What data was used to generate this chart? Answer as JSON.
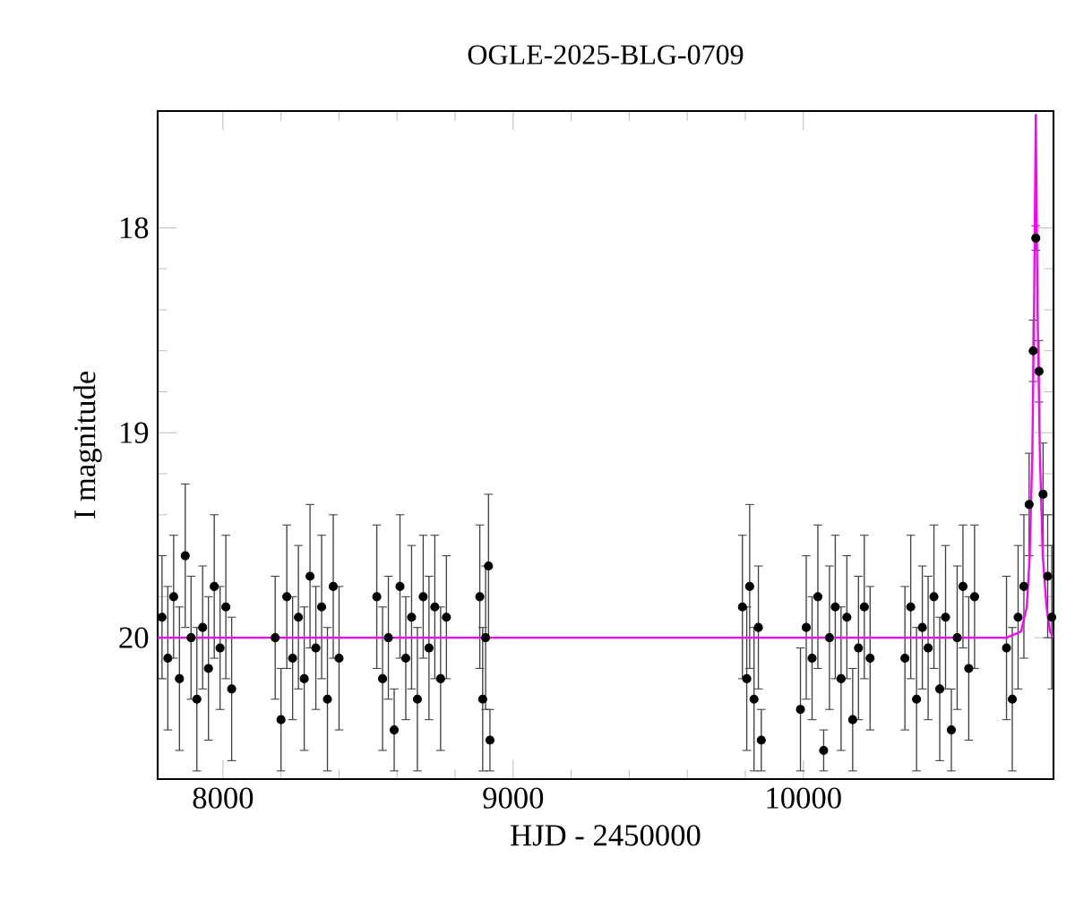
{
  "chart_data": {
    "type": "scatter",
    "title": "OGLE-2025-BLG-0709",
    "xlabel": "HJD - 2450000",
    "ylabel": "I magnitude",
    "xlim": [
      7775,
      10862
    ],
    "ylim": [
      20.69,
      17.43
    ],
    "xticks": [
      8000,
      9000,
      10000
    ],
    "yticks": [
      18,
      19,
      20
    ],
    "grid": false,
    "series": [
      {
        "marker": "circle",
        "color": "#000000",
        "x": [
          7790,
          7810,
          7830,
          7850,
          7870,
          7890,
          7910,
          7930,
          7950,
          7970,
          7990,
          8010,
          8030,
          8180,
          8200,
          8220,
          8240,
          8260,
          8280,
          8300,
          8320,
          8340,
          8360,
          8380,
          8400,
          8530,
          8550,
          8570,
          8590,
          8610,
          8630,
          8650,
          8670,
          8690,
          8710,
          8730,
          8750,
          8770,
          8885,
          8895,
          8905,
          8915,
          8920,
          9790,
          9805,
          9815,
          9830,
          9845,
          9855,
          9990,
          10010,
          10030,
          10050,
          10070,
          10090,
          10110,
          10130,
          10150,
          10170,
          10190,
          10210,
          10230,
          10350,
          10370,
          10390,
          10410,
          10430,
          10450,
          10470,
          10490,
          10510,
          10530,
          10550,
          10570,
          10590,
          10700,
          10720,
          10740,
          10760,
          10778,
          10792,
          10801,
          10812,
          10826,
          10842,
          10856
        ],
        "values": [
          19.9,
          20.1,
          19.8,
          20.2,
          19.6,
          20.0,
          20.3,
          19.95,
          20.15,
          19.75,
          20.05,
          19.85,
          20.25,
          20.0,
          20.4,
          19.8,
          20.1,
          19.9,
          20.2,
          19.7,
          20.05,
          19.85,
          20.3,
          19.75,
          20.1,
          19.8,
          20.2,
          20.0,
          20.45,
          19.75,
          20.1,
          19.9,
          20.3,
          19.8,
          20.05,
          19.85,
          20.2,
          19.9,
          19.8,
          20.3,
          20.0,
          19.65,
          20.5,
          19.85,
          20.2,
          19.75,
          20.3,
          19.95,
          20.5,
          20.35,
          19.95,
          20.1,
          19.8,
          20.55,
          20.0,
          19.85,
          20.2,
          19.9,
          20.4,
          20.05,
          19.85,
          20.1,
          20.1,
          19.85,
          20.3,
          19.95,
          20.05,
          19.8,
          20.25,
          19.9,
          20.45,
          20.0,
          19.75,
          20.15,
          19.8,
          20.05,
          20.3,
          19.9,
          19.75,
          19.35,
          18.6,
          18.05,
          18.7,
          19.3,
          19.7,
          19.9
        ],
        "errors": [
          0.3,
          0.35,
          0.3,
          0.35,
          0.35,
          0.3,
          0.35,
          0.3,
          0.35,
          0.35,
          0.3,
          0.35,
          0.35,
          0.3,
          0.25,
          0.35,
          0.3,
          0.35,
          0.35,
          0.35,
          0.3,
          0.35,
          0.35,
          0.35,
          0.35,
          0.35,
          0.35,
          0.3,
          0.2,
          0.35,
          0.3,
          0.35,
          0.35,
          0.3,
          0.35,
          0.35,
          0.35,
          0.3,
          0.35,
          0.35,
          0.35,
          0.35,
          0.15,
          0.35,
          0.35,
          0.4,
          0.35,
          0.3,
          0.15,
          0.3,
          0.35,
          0.3,
          0.35,
          0.1,
          0.35,
          0.35,
          0.35,
          0.3,
          0.25,
          0.35,
          0.35,
          0.35,
          0.35,
          0.35,
          0.35,
          0.3,
          0.35,
          0.35,
          0.35,
          0.35,
          0.2,
          0.35,
          0.3,
          0.35,
          0.35,
          0.35,
          0.35,
          0.35,
          0.35,
          0.25,
          0.15,
          0.06,
          0.15,
          0.25,
          0.3,
          0.35
        ]
      },
      {
        "type": "line",
        "marker": "none",
        "color": "#ff00ff",
        "x": [
          7775,
          10700,
          10750,
          10770,
          10780,
          10789,
          10795,
          10801,
          10807,
          10815,
          10825,
          10838,
          10850,
          10862
        ],
        "values": [
          20.0,
          20.0,
          19.97,
          19.85,
          19.6,
          19.1,
          18.4,
          17.45,
          18.4,
          19.1,
          19.6,
          19.85,
          19.97,
          20.0
        ]
      }
    ]
  }
}
